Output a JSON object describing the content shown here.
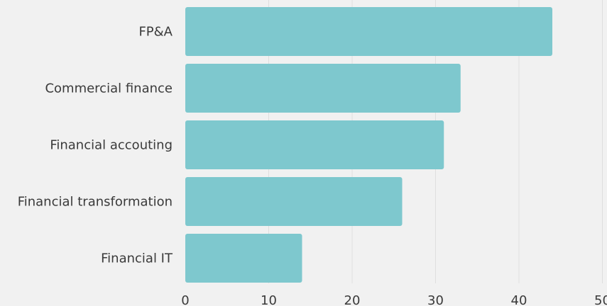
{
  "chart_data": {
    "type": "bar",
    "orientation": "horizontal",
    "categories": [
      "FP&A",
      "Commercial finance",
      "Financial accouting",
      "Financial transformation",
      "Financial IT"
    ],
    "values": [
      44,
      33,
      31,
      26,
      14
    ],
    "xlim": [
      0,
      50
    ],
    "xticks": [
      0,
      10,
      20,
      30,
      40,
      50
    ],
    "grid": true,
    "colors": {
      "bar": "#7ec8ce",
      "grid": "#dedede",
      "background": "#f1f1f1",
      "text": "#3a3a3a"
    }
  }
}
